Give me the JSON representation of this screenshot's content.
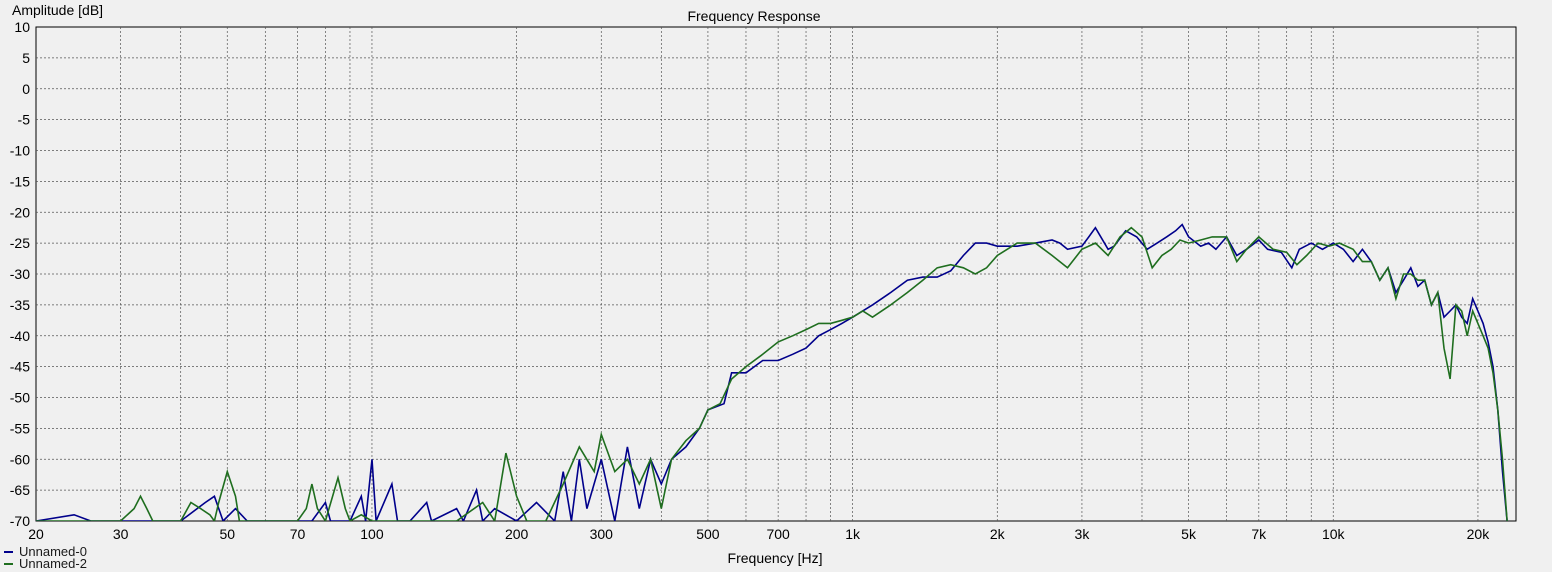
{
  "chart_data": {
    "type": "line",
    "title": "Frequency Response",
    "xlabel": "Frequency [Hz]",
    "ylabel": "Amplitude [dB]",
    "x_scale": "log",
    "xlim": [
      20,
      24000
    ],
    "ylim": [
      -70,
      10
    ],
    "grid": true,
    "legend_position": "bottom-left",
    "x_tick_values": [
      20,
      30,
      50,
      70,
      100,
      200,
      300,
      500,
      700,
      1000,
      2000,
      3000,
      5000,
      7000,
      10000,
      20000
    ],
    "x_tick_labels": [
      "20",
      "30",
      "50",
      "70",
      "100",
      "200",
      "300",
      "500",
      "700",
      "1k",
      "2k",
      "3k",
      "5k",
      "7k",
      "10k",
      "20k"
    ],
    "y_ticks": [
      10,
      5,
      0,
      -5,
      -10,
      -15,
      -20,
      -25,
      -30,
      -35,
      -40,
      -45,
      -50,
      -55,
      -60,
      -65,
      -70
    ],
    "series": [
      {
        "name": "Unnamed-0",
        "color": "#00008b",
        "points": [
          [
            20,
            -70
          ],
          [
            24,
            -69
          ],
          [
            26,
            -70
          ],
          [
            40,
            -70
          ],
          [
            45,
            -67
          ],
          [
            47,
            -66
          ],
          [
            49,
            -70
          ],
          [
            52,
            -68
          ],
          [
            55,
            -70
          ],
          [
            75,
            -70
          ],
          [
            80,
            -67
          ],
          [
            82,
            -70
          ],
          [
            90,
            -70
          ],
          [
            95,
            -66
          ],
          [
            97,
            -70
          ],
          [
            100,
            -60
          ],
          [
            102,
            -70
          ],
          [
            110,
            -64
          ],
          [
            113,
            -70
          ],
          [
            120,
            -70
          ],
          [
            130,
            -67
          ],
          [
            133,
            -70
          ],
          [
            150,
            -68
          ],
          [
            155,
            -70
          ],
          [
            165,
            -65
          ],
          [
            170,
            -70
          ],
          [
            180,
            -68
          ],
          [
            200,
            -70
          ],
          [
            220,
            -67
          ],
          [
            240,
            -70
          ],
          [
            250,
            -62
          ],
          [
            260,
            -70
          ],
          [
            270,
            -60
          ],
          [
            280,
            -68
          ],
          [
            300,
            -60
          ],
          [
            320,
            -70
          ],
          [
            340,
            -58
          ],
          [
            360,
            -68
          ],
          [
            380,
            -60
          ],
          [
            400,
            -64
          ],
          [
            420,
            -60
          ],
          [
            450,
            -58
          ],
          [
            480,
            -55
          ],
          [
            500,
            -52
          ],
          [
            540,
            -51
          ],
          [
            560,
            -46
          ],
          [
            600,
            -46
          ],
          [
            650,
            -44
          ],
          [
            700,
            -44
          ],
          [
            750,
            -43
          ],
          [
            800,
            -42
          ],
          [
            850,
            -40
          ],
          [
            900,
            -39
          ],
          [
            950,
            -38
          ],
          [
            1000,
            -37
          ],
          [
            1100,
            -35
          ],
          [
            1200,
            -33
          ],
          [
            1300,
            -31
          ],
          [
            1400,
            -30.5
          ],
          [
            1500,
            -30.5
          ],
          [
            1600,
            -29.5
          ],
          [
            1700,
            -27
          ],
          [
            1800,
            -25
          ],
          [
            1900,
            -25
          ],
          [
            2000,
            -25.5
          ],
          [
            2200,
            -25.5
          ],
          [
            2400,
            -25
          ],
          [
            2600,
            -24.5
          ],
          [
            2700,
            -25
          ],
          [
            2800,
            -26
          ],
          [
            3000,
            -25.5
          ],
          [
            3100,
            -24
          ],
          [
            3200,
            -22.5
          ],
          [
            3400,
            -26
          ],
          [
            3500,
            -25.5
          ],
          [
            3700,
            -23
          ],
          [
            3900,
            -24
          ],
          [
            4100,
            -26
          ],
          [
            4300,
            -25
          ],
          [
            4500,
            -24
          ],
          [
            4700,
            -23
          ],
          [
            4850,
            -22
          ],
          [
            5000,
            -24
          ],
          [
            5300,
            -25.5
          ],
          [
            5500,
            -25
          ],
          [
            5700,
            -26
          ],
          [
            6000,
            -24
          ],
          [
            6300,
            -27
          ],
          [
            6600,
            -26
          ],
          [
            7000,
            -24.5
          ],
          [
            7300,
            -26
          ],
          [
            7800,
            -26.5
          ],
          [
            8200,
            -29
          ],
          [
            8500,
            -26
          ],
          [
            9000,
            -25
          ],
          [
            9500,
            -26
          ],
          [
            10000,
            -25
          ],
          [
            10500,
            -26
          ],
          [
            11000,
            -28
          ],
          [
            11500,
            -26
          ],
          [
            12000,
            -28
          ],
          [
            12500,
            -31
          ],
          [
            13000,
            -29
          ],
          [
            13500,
            -33
          ],
          [
            14000,
            -31
          ],
          [
            14500,
            -29
          ],
          [
            15000,
            -32
          ],
          [
            15500,
            -31
          ],
          [
            16000,
            -35
          ],
          [
            16500,
            -33
          ],
          [
            17000,
            -37
          ],
          [
            17500,
            -36
          ],
          [
            18000,
            -35
          ],
          [
            18500,
            -37
          ],
          [
            19000,
            -38
          ],
          [
            19500,
            -34
          ],
          [
            20000,
            -36
          ],
          [
            20500,
            -38
          ],
          [
            21000,
            -41
          ],
          [
            21500,
            -45
          ],
          [
            22000,
            -52
          ],
          [
            22500,
            -62
          ],
          [
            23000,
            -70
          ]
        ]
      },
      {
        "name": "Unnamed-2",
        "color": "#1f6e1f",
        "points": [
          [
            20,
            -70
          ],
          [
            30,
            -70
          ],
          [
            32,
            -68
          ],
          [
            33,
            -66
          ],
          [
            34,
            -68
          ],
          [
            35,
            -70
          ],
          [
            40,
            -70
          ],
          [
            42,
            -67
          ],
          [
            44,
            -68
          ],
          [
            46,
            -69
          ],
          [
            47,
            -70
          ],
          [
            48,
            -67
          ],
          [
            50,
            -62
          ],
          [
            52,
            -66
          ],
          [
            53,
            -70
          ],
          [
            70,
            -70
          ],
          [
            73,
            -68
          ],
          [
            75,
            -64
          ],
          [
            77,
            -68
          ],
          [
            80,
            -70
          ],
          [
            85,
            -63
          ],
          [
            88,
            -68
          ],
          [
            90,
            -70
          ],
          [
            95,
            -69
          ],
          [
            100,
            -70
          ],
          [
            110,
            -70
          ],
          [
            130,
            -70
          ],
          [
            150,
            -70
          ],
          [
            170,
            -67
          ],
          [
            180,
            -70
          ],
          [
            190,
            -59
          ],
          [
            200,
            -66
          ],
          [
            210,
            -70
          ],
          [
            230,
            -70
          ],
          [
            250,
            -64
          ],
          [
            270,
            -58
          ],
          [
            290,
            -62
          ],
          [
            300,
            -56
          ],
          [
            320,
            -62
          ],
          [
            340,
            -60
          ],
          [
            360,
            -64
          ],
          [
            380,
            -60
          ],
          [
            400,
            -68
          ],
          [
            420,
            -60
          ],
          [
            450,
            -57
          ],
          [
            480,
            -55
          ],
          [
            500,
            -52
          ],
          [
            530,
            -51
          ],
          [
            560,
            -47
          ],
          [
            600,
            -45
          ],
          [
            650,
            -43
          ],
          [
            700,
            -41
          ],
          [
            750,
            -40
          ],
          [
            800,
            -39
          ],
          [
            850,
            -38
          ],
          [
            900,
            -38
          ],
          [
            950,
            -37.5
          ],
          [
            1000,
            -37
          ],
          [
            1050,
            -36
          ],
          [
            1100,
            -37
          ],
          [
            1200,
            -35
          ],
          [
            1300,
            -33
          ],
          [
            1400,
            -31
          ],
          [
            1500,
            -29
          ],
          [
            1600,
            -28.5
          ],
          [
            1700,
            -29
          ],
          [
            1800,
            -30
          ],
          [
            1900,
            -29
          ],
          [
            2000,
            -27
          ],
          [
            2200,
            -25
          ],
          [
            2400,
            -25
          ],
          [
            2600,
            -27
          ],
          [
            2800,
            -29
          ],
          [
            3000,
            -26
          ],
          [
            3200,
            -25
          ],
          [
            3400,
            -27
          ],
          [
            3600,
            -24
          ],
          [
            3800,
            -22.5
          ],
          [
            4000,
            -24
          ],
          [
            4200,
            -29
          ],
          [
            4400,
            -27
          ],
          [
            4600,
            -26
          ],
          [
            4800,
            -24.5
          ],
          [
            5000,
            -25
          ],
          [
            5300,
            -24.5
          ],
          [
            5600,
            -24
          ],
          [
            6000,
            -24
          ],
          [
            6300,
            -28
          ],
          [
            6600,
            -26
          ],
          [
            7000,
            -24
          ],
          [
            7500,
            -26
          ],
          [
            8000,
            -26.5
          ],
          [
            8400,
            -28.5
          ],
          [
            8800,
            -27
          ],
          [
            9300,
            -25
          ],
          [
            9800,
            -25.5
          ],
          [
            10300,
            -25
          ],
          [
            11000,
            -26
          ],
          [
            11500,
            -28
          ],
          [
            12000,
            -28
          ],
          [
            12500,
            -31
          ],
          [
            13000,
            -29
          ],
          [
            13500,
            -34
          ],
          [
            14000,
            -30
          ],
          [
            14500,
            -30
          ],
          [
            15000,
            -31
          ],
          [
            15500,
            -31
          ],
          [
            16000,
            -35
          ],
          [
            16500,
            -33
          ],
          [
            17000,
            -42
          ],
          [
            17500,
            -47
          ],
          [
            18000,
            -35
          ],
          [
            18500,
            -36
          ],
          [
            19000,
            -40
          ],
          [
            19500,
            -36
          ],
          [
            20000,
            -38
          ],
          [
            20500,
            -40
          ],
          [
            21000,
            -42
          ],
          [
            21500,
            -46
          ],
          [
            22000,
            -52
          ],
          [
            22500,
            -60
          ],
          [
            23000,
            -70
          ]
        ]
      }
    ]
  }
}
